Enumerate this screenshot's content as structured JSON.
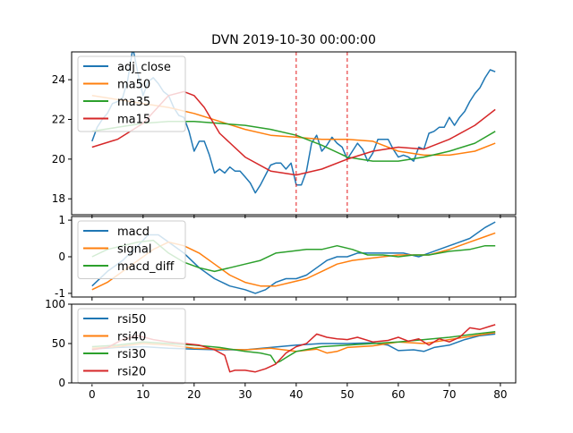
{
  "chart_data": {
    "title": "DVN 2019-10-30 00:00:00",
    "type": "line",
    "x_ticks": [
      0,
      10,
      20,
      30,
      40,
      50,
      60,
      70,
      80
    ],
    "colors": {
      "blue": "#1f77b4",
      "orange": "#ff7f0e",
      "green": "#2ca02c",
      "red": "#d62728",
      "vline": "#e41a1c"
    },
    "panels": [
      {
        "id": "price",
        "ylim": [
          17.2,
          25.4
        ],
        "xlim": [
          -4,
          83
        ],
        "y_ticks": [
          18,
          20,
          22,
          24
        ],
        "vlines": [
          40,
          50
        ],
        "legend_position": "top-left",
        "series": [
          {
            "name": "adj_close",
            "color": "#1f77b4",
            "x": [
              0,
              1,
              2,
              3,
              4,
              5,
              6,
              7,
              8,
              9,
              10,
              11,
              12,
              13,
              14,
              15,
              16,
              17,
              18,
              19,
              20,
              21,
              22,
              23,
              24,
              25,
              26,
              27,
              28,
              29,
              30,
              31,
              32,
              33,
              34,
              35,
              36,
              37,
              38,
              39,
              40,
              41,
              42,
              43,
              44,
              45,
              46,
              47,
              48,
              49,
              50,
              51,
              52,
              53,
              54,
              55,
              56,
              57,
              58,
              59,
              60,
              61,
              62,
              63,
              64,
              65,
              66,
              67,
              68,
              69,
              70,
              71,
              72,
              73,
              74,
              75,
              76,
              77,
              78,
              79
            ],
            "y": [
              20.9,
              21.6,
              22.0,
              22.3,
              22.8,
              22.9,
              23.1,
              24.0,
              25.6,
              24.3,
              23.2,
              23.9,
              24.1,
              23.8,
              23.4,
              23.2,
              22.6,
              22.2,
              22.1,
              21.4,
              20.4,
              20.9,
              20.9,
              20.2,
              19.3,
              19.5,
              19.3,
              19.6,
              19.4,
              19.4,
              19.1,
              18.8,
              18.3,
              18.7,
              19.2,
              19.7,
              19.8,
              19.8,
              19.5,
              19.8,
              18.7,
              18.7,
              19.4,
              20.8,
              21.2,
              20.4,
              20.7,
              21.1,
              20.8,
              20.6,
              20.0,
              20.4,
              20.8,
              20.5,
              19.9,
              20.3,
              21.0,
              21.0,
              21.0,
              20.5,
              20.1,
              20.2,
              20.1,
              19.9,
              20.6,
              20.5,
              21.3,
              21.4,
              21.6,
              21.6,
              22.1,
              21.7,
              22.1,
              22.4,
              22.9,
              23.3,
              23.6,
              24.1,
              24.5,
              24.4
            ]
          },
          {
            "name": "ma50",
            "color": "#ff7f0e",
            "x": [
              0,
              5,
              10,
              15,
              20,
              25,
              30,
              35,
              40,
              45,
              50,
              55,
              60,
              65,
              70,
              75,
              79
            ],
            "y": [
              23.2,
              23.0,
              22.8,
              22.6,
              22.3,
              21.9,
              21.5,
              21.2,
              21.1,
              21.0,
              21.0,
              20.9,
              20.4,
              20.2,
              20.2,
              20.4,
              20.8
            ]
          },
          {
            "name": "ma35",
            "color": "#2ca02c",
            "x": [
              0,
              5,
              10,
              15,
              20,
              25,
              30,
              35,
              40,
              45,
              50,
              55,
              60,
              65,
              70,
              75,
              79
            ],
            "y": [
              21.4,
              21.6,
              21.8,
              21.9,
              21.9,
              21.8,
              21.7,
              21.5,
              21.2,
              20.7,
              20.1,
              19.9,
              19.9,
              20.1,
              20.4,
              20.8,
              21.4
            ]
          },
          {
            "name": "ma15",
            "color": "#d62728",
            "x": [
              0,
              5,
              10,
              15,
              18,
              20,
              22,
              25,
              30,
              35,
              40,
              45,
              50,
              55,
              60,
              65,
              70,
              75,
              79
            ],
            "y": [
              20.6,
              21.0,
              21.8,
              23.2,
              23.4,
              23.2,
              22.6,
              21.3,
              20.1,
              19.4,
              19.2,
              19.5,
              20.0,
              20.4,
              20.6,
              20.5,
              21.0,
              21.7,
              22.5
            ]
          }
        ]
      },
      {
        "id": "macd",
        "ylim": [
          -1.1,
          1.1
        ],
        "xlim": [
          -4,
          83
        ],
        "y_ticks": [
          -1,
          0,
          1
        ],
        "legend_position": "top-left",
        "series": [
          {
            "name": "macd",
            "color": "#1f77b4",
            "x": [
              0,
              3,
              6,
              9,
              11,
              13,
              15,
              18,
              21,
              24,
              27,
              30,
              32,
              34,
              36,
              38,
              40,
              42,
              44,
              46,
              48,
              50,
              52,
              55,
              58,
              61,
              64,
              66,
              70,
              74,
              77,
              79
            ],
            "y": [
              -0.8,
              -0.4,
              -0.1,
              0.3,
              0.6,
              0.6,
              0.4,
              0.1,
              -0.3,
              -0.6,
              -0.8,
              -0.9,
              -1.0,
              -0.9,
              -0.7,
              -0.6,
              -0.6,
              -0.5,
              -0.3,
              -0.1,
              0.0,
              0.0,
              0.1,
              0.1,
              0.1,
              0.1,
              0.0,
              0.1,
              0.3,
              0.5,
              0.8,
              0.95
            ]
          },
          {
            "name": "signal",
            "color": "#ff7f0e",
            "x": [
              0,
              3,
              6,
              9,
              12,
              15,
              18,
              21,
              24,
              27,
              30,
              33,
              36,
              39,
              42,
              45,
              48,
              51,
              54,
              57,
              60,
              63,
              66,
              70,
              74,
              77,
              79
            ],
            "y": [
              -0.9,
              -0.7,
              -0.4,
              -0.1,
              0.2,
              0.4,
              0.3,
              0.1,
              -0.2,
              -0.5,
              -0.7,
              -0.8,
              -0.8,
              -0.7,
              -0.6,
              -0.4,
              -0.2,
              -0.1,
              -0.05,
              0.0,
              0.05,
              0.05,
              0.05,
              0.2,
              0.4,
              0.55,
              0.65
            ]
          },
          {
            "name": "macd_diff",
            "color": "#2ca02c",
            "x": [
              0,
              3,
              6,
              9,
              12,
              15,
              18,
              21,
              24,
              27,
              30,
              33,
              36,
              39,
              42,
              45,
              48,
              51,
              54,
              57,
              60,
              63,
              66,
              70,
              74,
              77,
              79
            ],
            "y": [
              0.0,
              0.2,
              0.3,
              0.4,
              0.45,
              0.1,
              -0.15,
              -0.3,
              -0.4,
              -0.3,
              -0.2,
              -0.1,
              0.1,
              0.15,
              0.2,
              0.2,
              0.3,
              0.2,
              0.05,
              0.05,
              0.0,
              0.05,
              0.05,
              0.15,
              0.2,
              0.3,
              0.3
            ]
          }
        ]
      },
      {
        "id": "rsi",
        "ylim": [
          0,
          100
        ],
        "xlim": [
          -4,
          83
        ],
        "y_ticks": [
          0,
          50,
          100
        ],
        "legend_position": "top-left",
        "series": [
          {
            "name": "rsi50",
            "color": "#1f77b4",
            "x": [
              0,
              5,
              10,
              15,
              20,
              25,
              30,
              35,
              40,
              45,
              50,
              55,
              58,
              60,
              63,
              65,
              67,
              70,
              73,
              76,
              79
            ],
            "y": [
              43,
              45,
              46,
              44,
              43,
              42,
              42,
              45,
              48,
              50,
              50,
              51,
              48,
              41,
              42,
              40,
              45,
              48,
              55,
              60,
              62
            ]
          },
          {
            "name": "rsi40",
            "color": "#ff7f0e",
            "x": [
              0,
              5,
              10,
              15,
              20,
              25,
              30,
              35,
              40,
              44,
              46,
              48,
              50,
              55,
              60,
              65,
              70,
              75,
              79
            ],
            "y": [
              44,
              46,
              50,
              48,
              44,
              43,
              42,
              44,
              40,
              43,
              38,
              40,
              45,
              47,
              52,
              50,
              55,
              60,
              64
            ]
          },
          {
            "name": "rsi30",
            "color": "#2ca02c",
            "x": [
              0,
              5,
              10,
              15,
              20,
              25,
              30,
              33,
              35,
              36,
              37,
              38,
              40,
              45,
              50,
              55,
              60,
              65,
              70,
              75,
              79
            ],
            "y": [
              46,
              48,
              52,
              50,
              48,
              45,
              40,
              38,
              35,
              25,
              28,
              32,
              40,
              46,
              48,
              50,
              52,
              55,
              58,
              62,
              65
            ]
          },
          {
            "name": "rsi20",
            "color": "#d62728",
            "x": [
              0,
              3,
              6,
              9,
              12,
              15,
              18,
              21,
              24,
              26,
              27,
              28,
              30,
              32,
              34,
              36,
              38,
              40,
              42,
              44,
              46,
              48,
              50,
              52,
              55,
              58,
              60,
              62,
              64,
              66,
              68,
              70,
              72,
              74,
              76,
              78,
              79
            ],
            "y": [
              42,
              45,
              55,
              60,
              55,
              52,
              50,
              48,
              42,
              35,
              14,
              16,
              16,
              14,
              18,
              24,
              38,
              46,
              50,
              62,
              58,
              56,
              55,
              58,
              52,
              54,
              58,
              53,
              56,
              48,
              56,
              52,
              58,
              70,
              68,
              72,
              74
            ]
          }
        ]
      }
    ]
  }
}
